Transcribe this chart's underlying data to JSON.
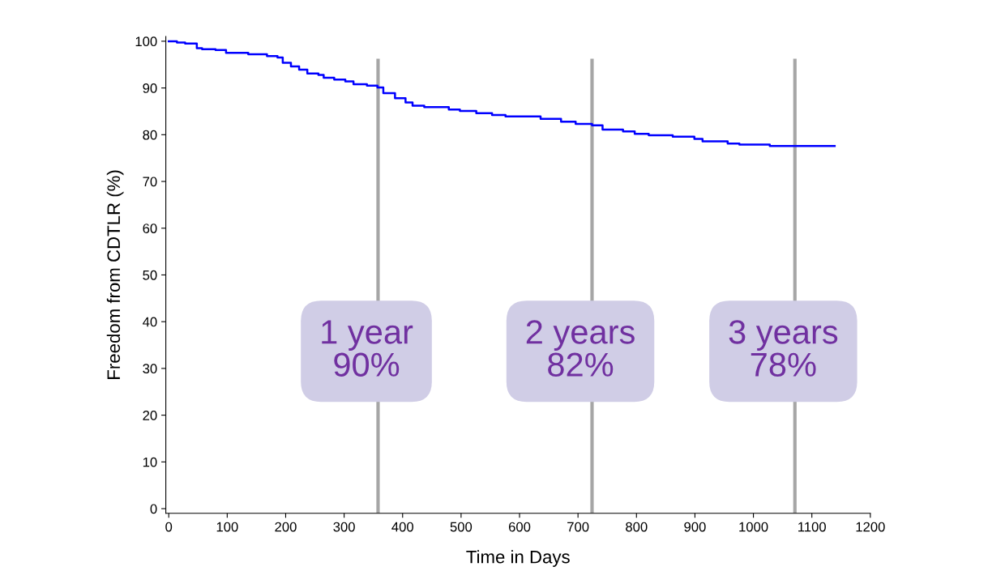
{
  "chart_data": {
    "type": "step",
    "xlabel": "Time in Days",
    "ylabel": "Freedom from CDTLR (%)",
    "x": [
      0,
      14,
      28,
      48,
      57,
      80,
      98,
      136,
      168,
      186,
      195,
      209,
      223,
      237,
      256,
      265,
      283,
      302,
      316,
      339,
      357,
      367,
      387,
      405,
      417,
      437,
      479,
      498,
      526,
      553,
      576,
      636,
      671,
      696,
      724,
      742,
      777,
      797,
      821,
      862,
      899,
      913,
      956,
      976,
      1028,
      1139
    ],
    "series": [
      {
        "color": "#0000ff",
        "values": [
          100,
          99.7,
          99.5,
          98.5,
          98.3,
          98.1,
          97.5,
          97.2,
          96.8,
          96.5,
          95.4,
          94.6,
          93.9,
          93.1,
          92.8,
          92.2,
          91.8,
          91.4,
          90.8,
          90.5,
          90.1,
          88.9,
          87.8,
          86.9,
          86.2,
          85.9,
          85.4,
          85.1,
          84.6,
          84.2,
          83.9,
          83.4,
          82.8,
          82.3,
          82.0,
          81.1,
          80.7,
          80.2,
          79.9,
          79.6,
          79.1,
          78.6,
          78.1,
          77.9,
          77.6,
          77.6
        ]
      }
    ],
    "xlim": [
      -5,
      1200
    ],
    "xticks": [
      0,
      100,
      200,
      300,
      400,
      500,
      600,
      700,
      800,
      900,
      1000,
      1100,
      1200
    ],
    "ylim": [
      -1,
      101
    ],
    "yticks": [
      0,
      10,
      20,
      30,
      40,
      50,
      60,
      70,
      80,
      90,
      100
    ],
    "ref_lines": [
      {
        "axis": "x",
        "value": 358,
        "label": "1 year\n90%",
        "color": "#a6a6a6"
      },
      {
        "axis": "x",
        "value": 724,
        "label": "2 years\n82%",
        "color": "#a6a6a6"
      },
      {
        "axis": "x",
        "value": 1071,
        "label": "3 years\n78%",
        "color": "#a6a6a6"
      }
    ],
    "grid": false,
    "legend": false
  }
}
